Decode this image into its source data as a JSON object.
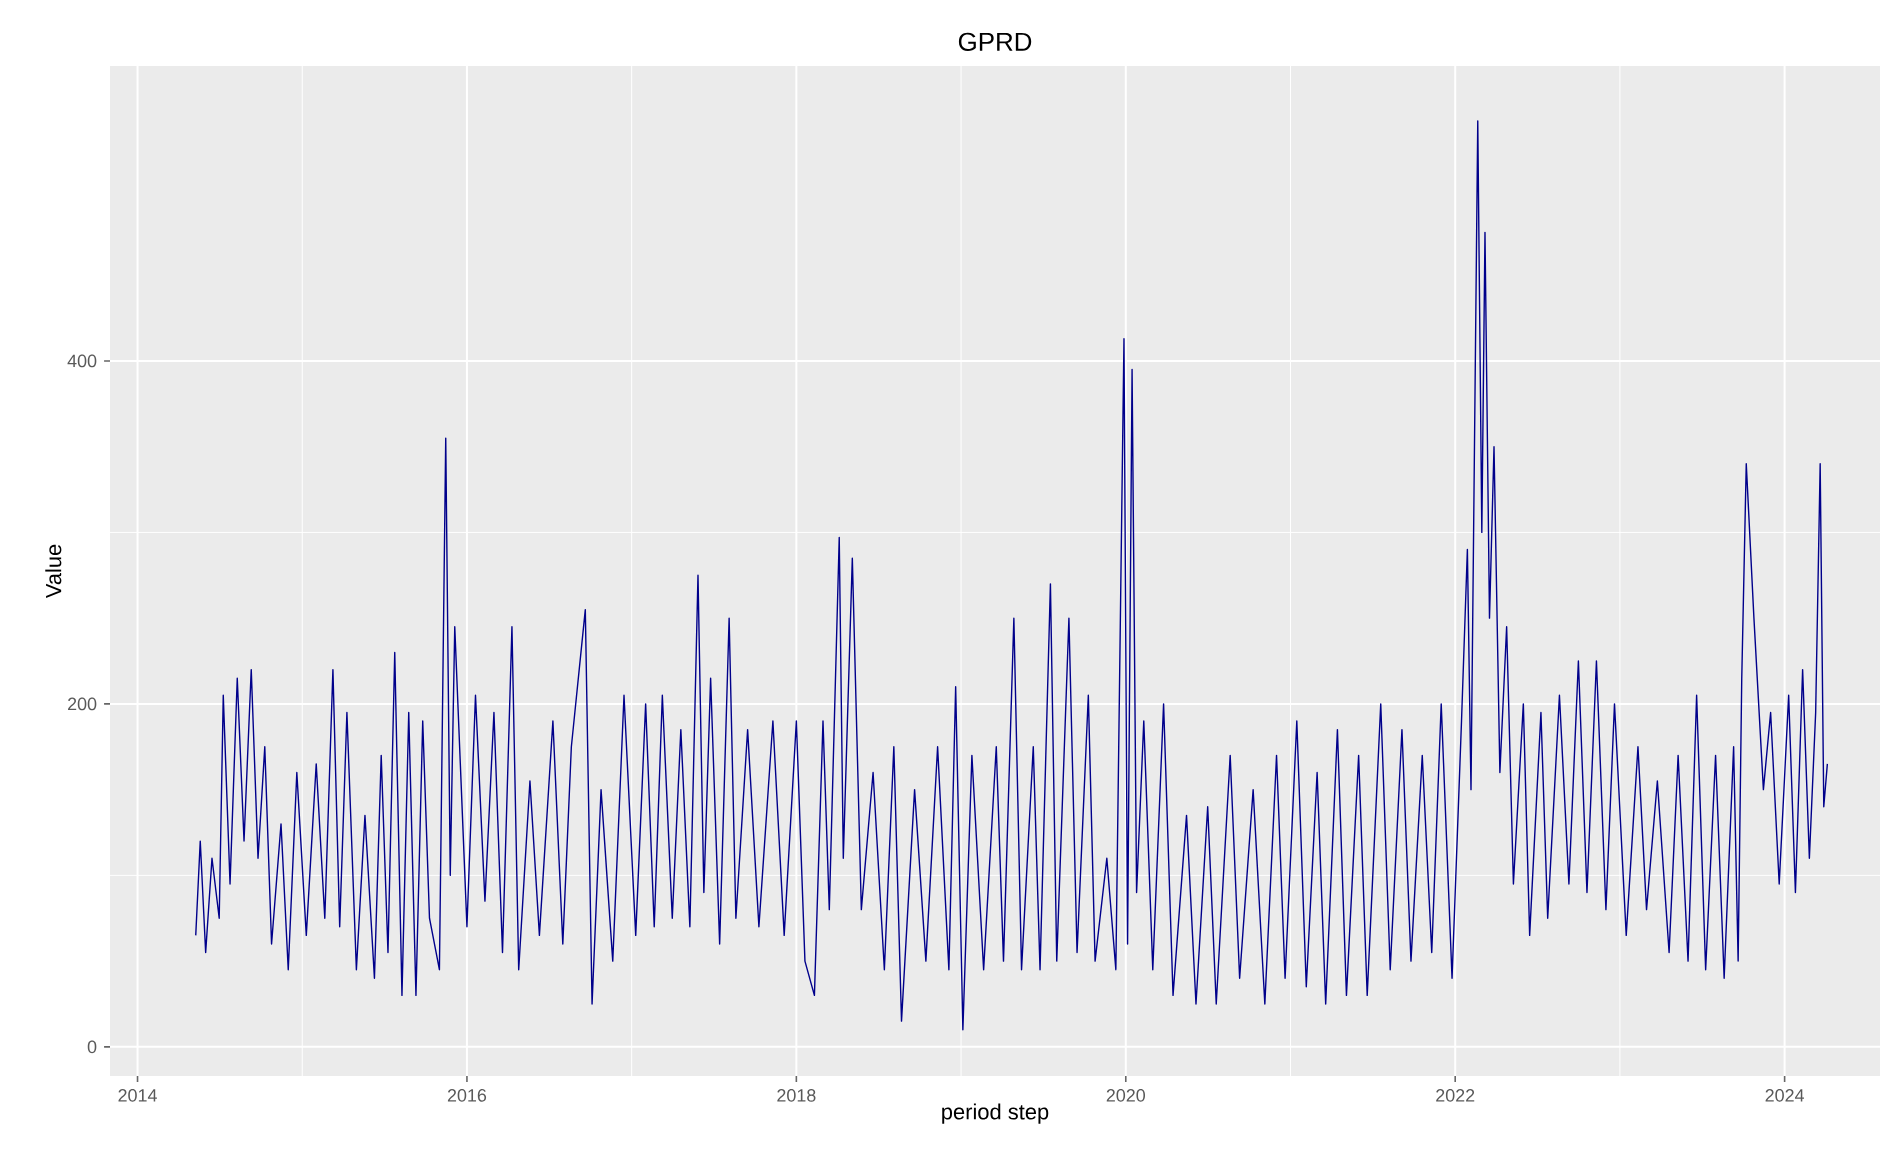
{
  "chart_data": {
    "type": "line",
    "title": "GPRD",
    "xlabel": "period step",
    "ylabel": "Value",
    "xlim": [
      "2013-11-01",
      "2024-07-31"
    ],
    "xticks": [
      {
        "value": "2014-01-01",
        "label": "2014"
      },
      {
        "value": "2016-01-01",
        "label": "2016"
      },
      {
        "value": "2018-01-01",
        "label": "2018"
      },
      {
        "value": "2020-01-01",
        "label": "2020"
      },
      {
        "value": "2022-01-01",
        "label": "2022"
      },
      {
        "value": "2024-01-01",
        "label": "2024"
      }
    ],
    "ylim": [
      -17,
      572
    ],
    "yticks": [
      0,
      200,
      400
    ],
    "grid": true,
    "series": [
      {
        "color": "#00008b",
        "x": [
          "2014-05-10",
          "2014-05-20",
          "2014-06-01",
          "2014-06-15",
          "2014-07-01",
          "2014-07-10",
          "2014-07-25",
          "2014-08-10",
          "2014-08-25",
          "2014-09-10",
          "2014-09-25",
          "2014-10-10",
          "2014-10-25",
          "2014-11-15",
          "2014-12-01",
          "2014-12-20",
          "2015-01-10",
          "2015-02-01",
          "2015-02-20",
          "2015-03-10",
          "2015-03-25",
          "2015-04-10",
          "2015-05-01",
          "2015-05-20",
          "2015-06-10",
          "2015-06-25",
          "2015-07-10",
          "2015-07-25",
          "2015-08-10",
          "2015-08-25",
          "2015-09-10",
          "2015-09-25",
          "2015-10-10",
          "2015-11-01",
          "2015-11-15",
          "2015-11-25",
          "2015-12-05",
          "2016-01-01",
          "2016-01-20",
          "2016-02-10",
          "2016-03-01",
          "2016-03-20",
          "2016-04-10",
          "2016-04-25",
          "2016-05-20",
          "2016-06-10",
          "2016-07-10",
          "2016-08-01",
          "2016-08-20",
          "2016-09-20",
          "2016-10-05",
          "2016-10-25",
          "2016-11-20",
          "2016-12-15",
          "2017-01-10",
          "2017-02-01",
          "2017-02-20",
          "2017-03-10",
          "2017-04-01",
          "2017-04-20",
          "2017-05-10",
          "2017-05-28",
          "2017-06-10",
          "2017-06-25",
          "2017-07-15",
          "2017-08-05",
          "2017-08-20",
          "2017-09-15",
          "2017-10-10",
          "2017-11-10",
          "2017-12-05",
          "2018-01-01",
          "2018-01-20",
          "2018-02-10",
          "2018-03-01",
          "2018-03-15",
          "2018-04-06",
          "2018-04-15",
          "2018-05-05",
          "2018-05-25",
          "2018-06-20",
          "2018-07-15",
          "2018-08-05",
          "2018-08-22",
          "2018-09-20",
          "2018-10-15",
          "2018-11-10",
          "2018-12-05",
          "2018-12-20",
          "2019-01-05",
          "2019-01-25",
          "2019-02-20",
          "2019-03-20",
          "2019-04-05",
          "2019-04-28",
          "2019-05-15",
          "2019-06-10",
          "2019-06-25",
          "2019-07-18",
          "2019-08-01",
          "2019-08-28",
          "2019-09-15",
          "2019-10-10",
          "2019-10-25",
          "2019-11-20",
          "2019-12-10",
          "2019-12-28",
          "2020-01-05",
          "2020-01-15",
          "2020-01-25",
          "2020-02-10",
          "2020-03-01",
          "2020-03-25",
          "2020-04-15",
          "2020-05-15",
          "2020-06-05",
          "2020-07-01",
          "2020-07-20",
          "2020-08-20",
          "2020-09-10",
          "2020-10-10",
          "2020-11-05",
          "2020-12-01",
          "2020-12-20",
          "2021-01-15",
          "2021-02-05",
          "2021-03-01",
          "2021-03-20",
          "2021-04-15",
          "2021-05-05",
          "2021-06-01",
          "2021-06-20",
          "2021-07-20",
          "2021-08-10",
          "2021-09-05",
          "2021-09-25",
          "2021-10-20",
          "2021-11-10",
          "2021-12-01",
          "2021-12-25",
          "2022-01-15",
          "2022-01-28",
          "2022-02-05",
          "2022-02-20",
          "2022-03-01",
          "2022-03-08",
          "2022-03-18",
          "2022-03-28",
          "2022-04-10",
          "2022-04-25",
          "2022-05-10",
          "2022-06-01",
          "2022-06-15",
          "2022-07-10",
          "2022-07-25",
          "2022-08-20",
          "2022-09-10",
          "2022-10-01",
          "2022-10-20",
          "2022-11-10",
          "2022-12-01",
          "2022-12-20",
          "2023-01-15",
          "2023-02-10",
          "2023-03-01",
          "2023-03-25",
          "2023-04-20",
          "2023-05-10",
          "2023-06-01",
          "2023-06-20",
          "2023-07-10",
          "2023-08-01",
          "2023-08-20",
          "2023-09-10",
          "2023-09-20",
          "2023-09-28",
          "2023-10-08",
          "2023-10-25",
          "2023-11-15",
          "2023-12-01",
          "2023-12-20",
          "2024-01-10",
          "2024-01-25",
          "2024-02-10",
          "2024-02-25",
          "2024-03-10",
          "2024-03-20",
          "2024-03-28",
          "2024-04-05"
        ],
        "values": [
          65,
          120,
          55,
          110,
          75,
          205,
          95,
          215,
          120,
          220,
          110,
          175,
          60,
          130,
          45,
          160,
          65,
          165,
          75,
          220,
          70,
          195,
          45,
          135,
          40,
          170,
          55,
          230,
          30,
          195,
          30,
          190,
          75,
          45,
          355,
          100,
          245,
          70,
          205,
          85,
          195,
          55,
          245,
          45,
          155,
          65,
          190,
          60,
          175,
          255,
          25,
          150,
          50,
          205,
          65,
          200,
          70,
          205,
          75,
          185,
          70,
          275,
          90,
          215,
          60,
          250,
          75,
          185,
          70,
          190,
          65,
          190,
          50,
          30,
          190,
          80,
          297,
          110,
          285,
          80,
          160,
          45,
          175,
          15,
          150,
          50,
          175,
          45,
          210,
          10,
          170,
          45,
          175,
          50,
          250,
          45,
          175,
          45,
          270,
          50,
          250,
          55,
          205,
          50,
          110,
          45,
          413,
          60,
          395,
          90,
          190,
          45,
          200,
          30,
          135,
          25,
          140,
          25,
          170,
          40,
          150,
          25,
          170,
          40,
          190,
          35,
          160,
          25,
          185,
          30,
          170,
          30,
          200,
          45,
          185,
          50,
          170,
          55,
          200,
          40,
          190,
          290,
          150,
          540,
          300,
          475,
          250,
          350,
          160,
          245,
          95,
          200,
          65,
          195,
          75,
          205,
          95,
          225,
          90,
          225,
          80,
          200,
          65,
          175,
          80,
          155,
          55,
          170,
          50,
          205,
          45,
          170,
          40,
          175,
          50,
          215,
          340,
          250,
          150,
          195,
          95,
          205,
          90,
          220,
          110,
          195,
          340,
          140,
          165
        ]
      }
    ]
  }
}
